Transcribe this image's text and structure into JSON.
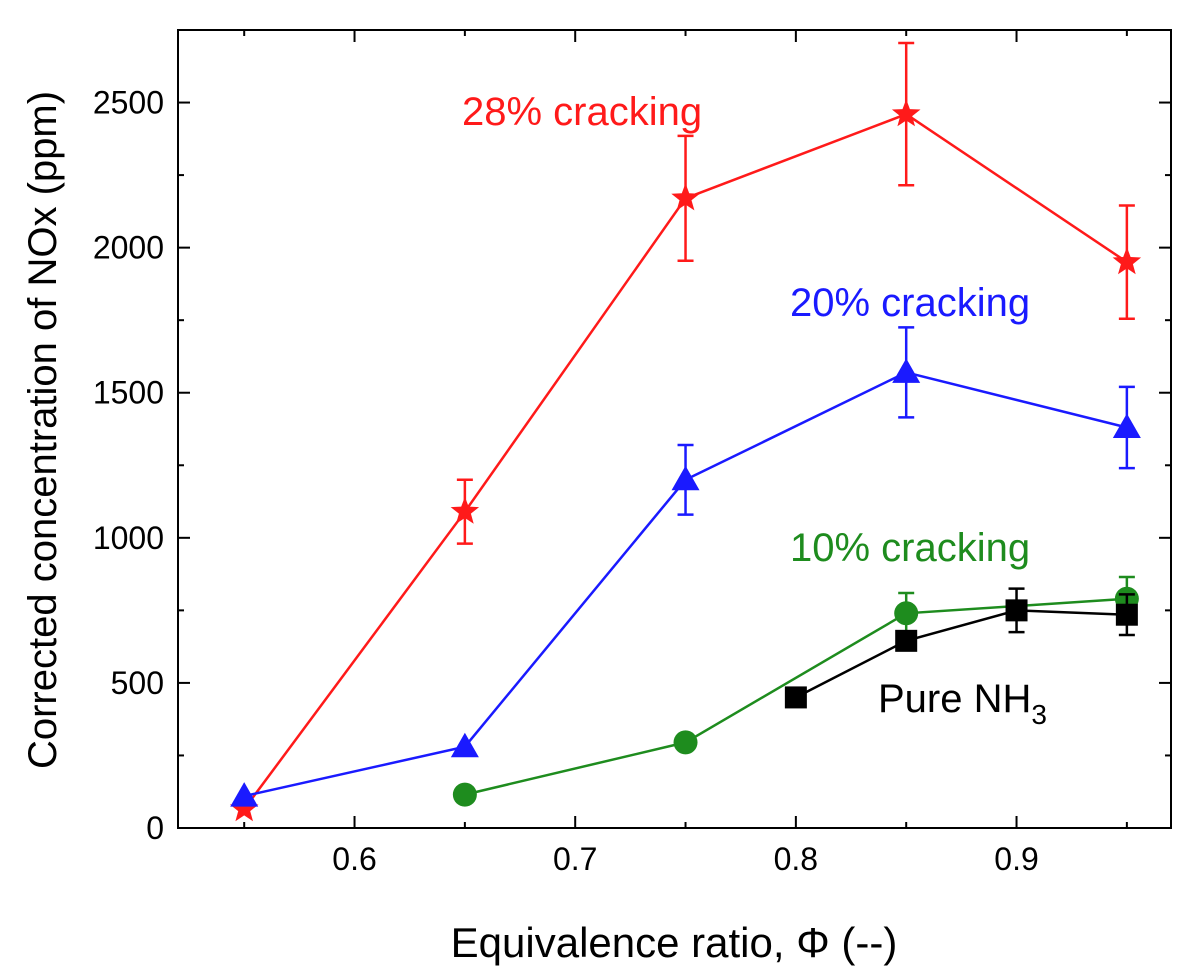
{
  "chart_data": {
    "type": "line",
    "xlabel": "Equivalence ratio, Φ (--)",
    "ylabel": "Corrected concentration of NOx (ppm)",
    "xlim": [
      0.52,
      0.97
    ],
    "ylim": [
      0,
      2750
    ],
    "xticks": [
      0.6,
      0.7,
      0.8,
      0.9
    ],
    "xtick_labels": [
      "0.6",
      "0.7",
      "0.8",
      "0.9"
    ],
    "yticks": [
      0,
      500,
      1000,
      1500,
      2000,
      2500
    ],
    "ytick_labels": [
      "0",
      "500",
      "1000",
      "1500",
      "2000",
      "2500"
    ],
    "grid": false,
    "series": [
      {
        "name": "28% cracking",
        "label": "28% cracking",
        "color": "#ff1a1a",
        "marker": "star",
        "x": [
          0.55,
          0.65,
          0.75,
          0.85,
          0.95
        ],
        "y": [
          65,
          1090,
          2170,
          2460,
          1950
        ],
        "err": [
          0,
          110,
          215,
          245,
          195
        ]
      },
      {
        "name": "20% cracking",
        "label": "20% cracking",
        "color": "#1a1aff",
        "marker": "triangle",
        "x": [
          0.55,
          0.65,
          0.75,
          0.85,
          0.95
        ],
        "y": [
          110,
          280,
          1200,
          1570,
          1380
        ],
        "err": [
          0,
          0,
          120,
          155,
          140
        ]
      },
      {
        "name": "10% cracking",
        "label": "10% cracking",
        "color": "#1e8c1e",
        "marker": "circle",
        "x": [
          0.65,
          0.75,
          0.85,
          0.95
        ],
        "y": [
          115,
          295,
          740,
          790
        ],
        "err": [
          0,
          0,
          70,
          75
        ]
      },
      {
        "name": "Pure NH3",
        "label": "Pure NH",
        "label_sub": "3",
        "color": "#000000",
        "marker": "square",
        "x": [
          0.8,
          0.85,
          0.9,
          0.95
        ],
        "y": [
          450,
          645,
          750,
          735
        ],
        "err": [
          0,
          0,
          75,
          70
        ]
      }
    ]
  }
}
